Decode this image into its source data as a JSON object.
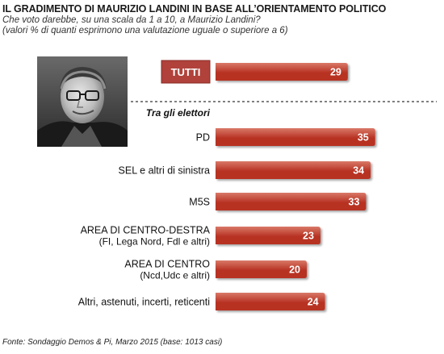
{
  "title": "IL GRADIMENTO DI MAURIZIO LANDINI IN BASE ALL’ORIENTAMENTO  POLITICO",
  "subtitle_line1": "Che voto darebbe, su una scala da 1 a 10, a Maurizio Landini?",
  "subtitle_line2": "(valori % di quanti esprimono una valutazione uguale o superiore a 6)",
  "source": "Fonte: Sondaggio Demos & Pi, Marzo 2015 (base: 1013 casi)",
  "colors": {
    "bar": "#b83324",
    "bar_light": "#d97968",
    "badge": "#b0423b"
  },
  "chart_data": {
    "type": "bar",
    "orientation": "horizontal",
    "value_unit": "%",
    "total": {
      "label": "TUTTI",
      "value": 29
    },
    "group_label": "Tra gli elettori",
    "categories": [
      [
        "PD"
      ],
      [
        "SEL e altri di sinistra"
      ],
      [
        "M5S"
      ],
      [
        "AREA DI CENTRO-DESTRA",
        "(FI, Lega Nord, Fdl e altri)"
      ],
      [
        "AREA DI CENTRO",
        "(Ncd,Udc e altri)"
      ],
      [
        "Altri, astenuti, incerti, reticenti"
      ]
    ],
    "values": [
      35,
      34,
      33,
      23,
      20,
      24
    ],
    "legend": "none",
    "grid": false
  }
}
